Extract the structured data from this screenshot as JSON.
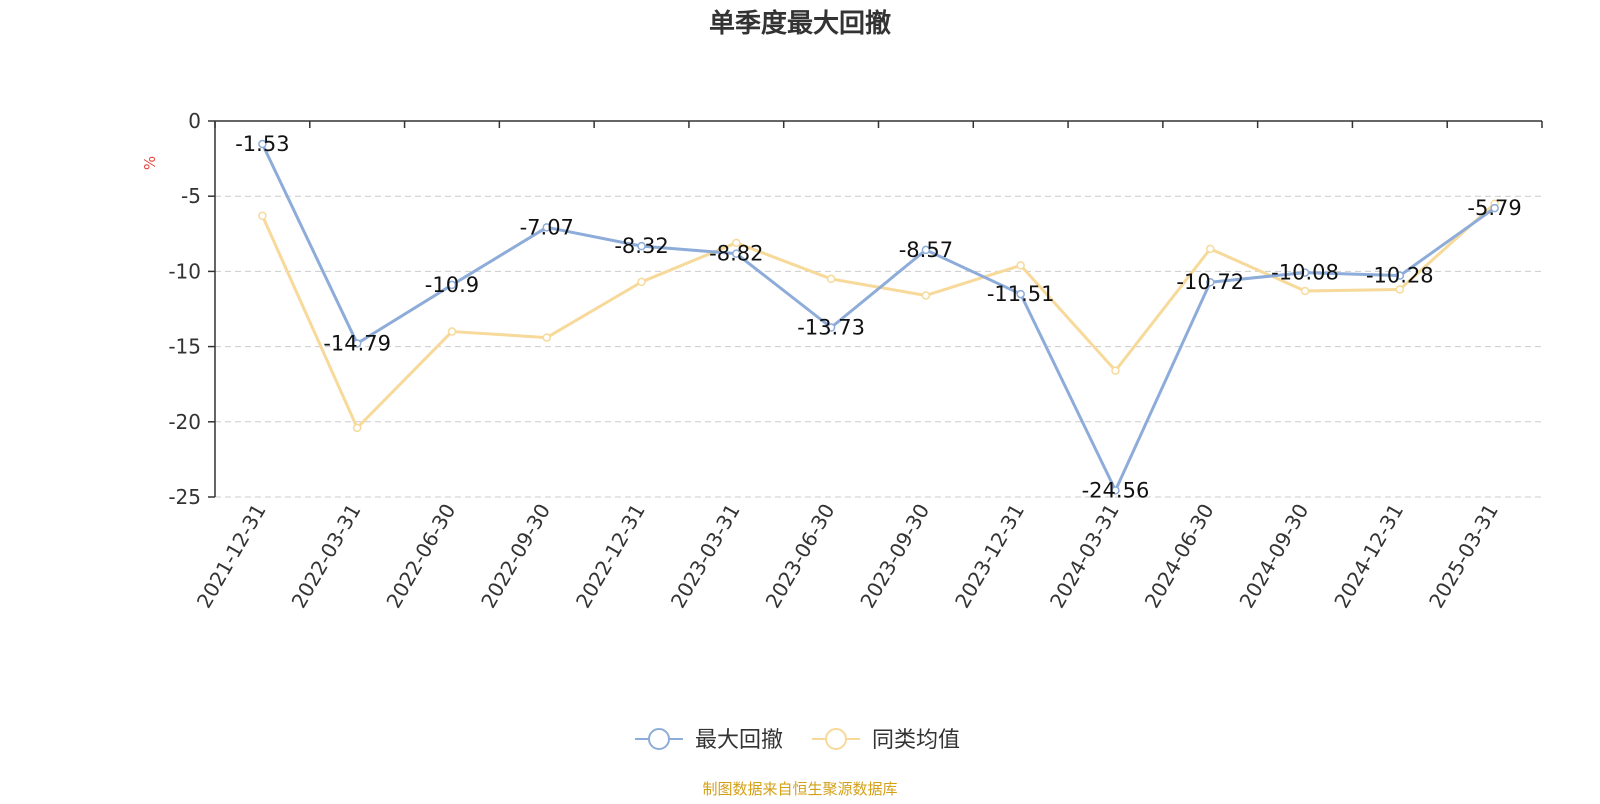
{
  "chart_data": {
    "type": "line",
    "title": "单季度最大回撤",
    "ylabel": "%",
    "ylim": [
      -25,
      0
    ],
    "yticks": [
      0,
      -5,
      -10,
      -15,
      -20,
      -25
    ],
    "grid": true,
    "legend_position": "bottom",
    "categories": [
      "2021-12-31",
      "2022-03-31",
      "2022-06-30",
      "2022-09-30",
      "2022-12-31",
      "2023-03-31",
      "2023-06-30",
      "2023-09-30",
      "2023-12-31",
      "2024-03-31",
      "2024-06-30",
      "2024-09-30",
      "2024-12-31",
      "2025-03-31"
    ],
    "series": [
      {
        "name": "最大回撤",
        "color": "#8eacd9",
        "show_labels": true,
        "values": [
          -1.53,
          -14.79,
          -10.9,
          -7.07,
          -8.32,
          -8.82,
          -13.73,
          -8.57,
          -11.51,
          -24.56,
          -10.72,
          -10.08,
          -10.28,
          -5.79
        ]
      },
      {
        "name": "同类均值",
        "color": "#f7d99a",
        "show_labels": false,
        "values": [
          -6.3,
          -20.4,
          -14.0,
          -14.4,
          -10.7,
          -8.1,
          -10.5,
          -11.6,
          -9.6,
          -16.6,
          -8.5,
          -11.3,
          -11.2,
          -5.5
        ]
      }
    ],
    "source": "制图数据来自恒生聚源数据库"
  },
  "colors": {
    "title": "#333333",
    "axis": "#333333",
    "grid": "#cccccc",
    "ylabel": "#e8473f",
    "source": "#d4a017"
  }
}
